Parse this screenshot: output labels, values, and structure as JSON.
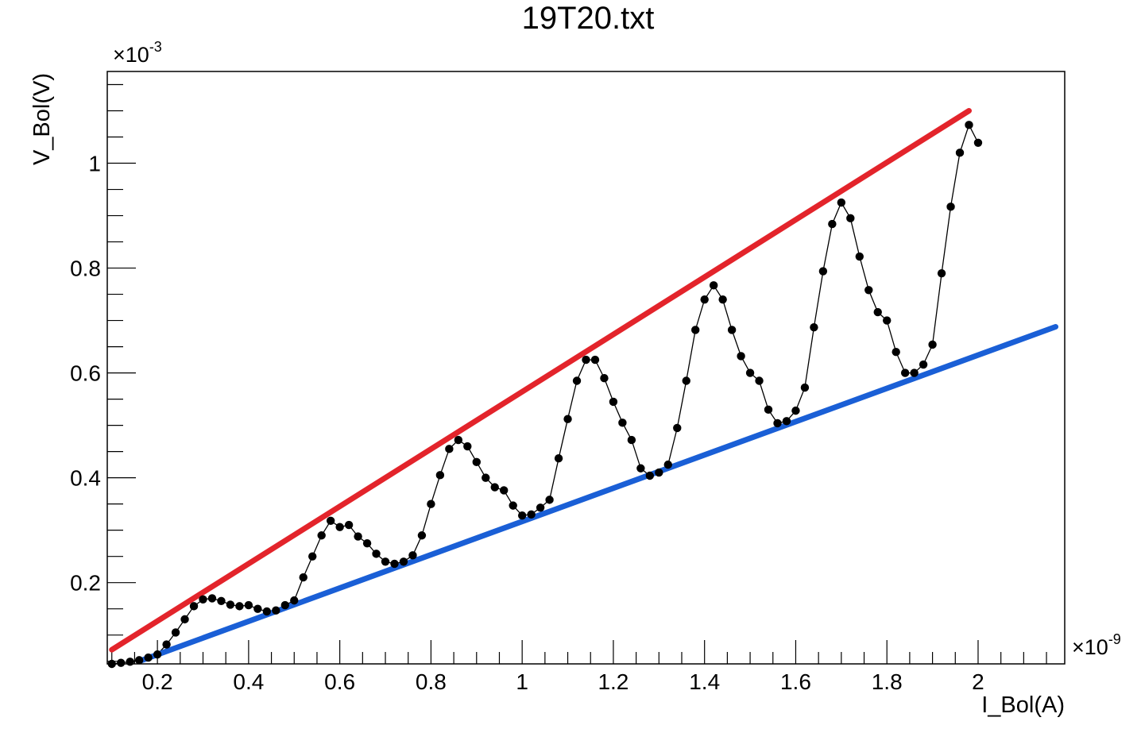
{
  "chart_data": {
    "type": "line",
    "title": "19T20.txt",
    "xlabel": "I_Bol(A)",
    "ylabel": "V_Bol(V)",
    "x_exponent_base": "×10",
    "x_exponent_power": "-9",
    "y_exponent_base": "×10",
    "y_exponent_power": "-3",
    "xlim": [
      0.09,
      2.19
    ],
    "ylim": [
      0.045,
      1.175
    ],
    "x_ticks": [
      0.2,
      0.4,
      0.6,
      0.8,
      1,
      1.2,
      1.4,
      1.6,
      1.8,
      2
    ],
    "x_tick_labels": [
      "0.2",
      "0.4",
      "0.6",
      "0.8",
      "1",
      "1.2",
      "1.4",
      "1.6",
      "1.8",
      "2"
    ],
    "y_ticks": [
      0.2,
      0.4,
      0.6,
      0.8,
      1
    ],
    "y_tick_labels": [
      "0.2",
      "0.4",
      "0.6",
      "0.8",
      "1"
    ],
    "grid": false,
    "legend": "none",
    "series": [
      {
        "style": "black line with filled circle markers",
        "color": "#000000",
        "x": [
          0.1,
          0.12,
          0.14,
          0.16,
          0.18,
          0.2,
          0.22,
          0.24,
          0.26,
          0.28,
          0.3,
          0.32,
          0.34,
          0.36,
          0.38,
          0.4,
          0.42,
          0.44,
          0.46,
          0.48,
          0.5,
          0.52,
          0.54,
          0.56,
          0.58,
          0.6,
          0.62,
          0.64,
          0.66,
          0.68,
          0.7,
          0.72,
          0.74,
          0.76,
          0.78,
          0.8,
          0.82,
          0.84,
          0.86,
          0.88,
          0.9,
          0.92,
          0.94,
          0.96,
          0.98,
          1.0,
          1.02,
          1.04,
          1.06,
          1.08,
          1.1,
          1.12,
          1.14,
          1.16,
          1.18,
          1.2,
          1.22,
          1.24,
          1.26,
          1.28,
          1.3,
          1.32,
          1.34,
          1.36,
          1.38,
          1.4,
          1.42,
          1.44,
          1.46,
          1.48,
          1.5,
          1.52,
          1.54,
          1.56,
          1.58,
          1.6,
          1.62,
          1.64,
          1.66,
          1.68,
          1.7,
          1.72,
          1.74,
          1.76,
          1.78,
          1.8,
          1.82,
          1.84,
          1.86,
          1.88,
          1.9,
          1.92,
          1.94,
          1.96,
          1.98,
          2.0
        ],
        "y": [
          0.045,
          0.047,
          0.049,
          0.052,
          0.057,
          0.063,
          0.082,
          0.105,
          0.13,
          0.155,
          0.168,
          0.17,
          0.165,
          0.158,
          0.155,
          0.157,
          0.15,
          0.145,
          0.147,
          0.157,
          0.166,
          0.21,
          0.25,
          0.29,
          0.318,
          0.306,
          0.31,
          0.288,
          0.275,
          0.255,
          0.24,
          0.236,
          0.24,
          0.252,
          0.29,
          0.35,
          0.405,
          0.455,
          0.472,
          0.46,
          0.43,
          0.4,
          0.382,
          0.376,
          0.347,
          0.328,
          0.33,
          0.343,
          0.358,
          0.437,
          0.512,
          0.585,
          0.625,
          0.625,
          0.59,
          0.545,
          0.505,
          0.472,
          0.418,
          0.404,
          0.41,
          0.425,
          0.495,
          0.585,
          0.682,
          0.74,
          0.767,
          0.74,
          0.682,
          0.632,
          0.6,
          0.585,
          0.53,
          0.504,
          0.508,
          0.528,
          0.572,
          0.687,
          0.794,
          0.884,
          0.925,
          0.895,
          0.822,
          0.758,
          0.716,
          0.7,
          0.64,
          0.6,
          0.6,
          0.616,
          0.654,
          0.79,
          0.917,
          1.02,
          1.073,
          1.039
        ]
      },
      {
        "style": "thick straight line",
        "color": "#e3242b",
        "x": [
          0.1,
          1.98
        ],
        "y": [
          0.072,
          1.1
        ]
      },
      {
        "style": "thick straight line",
        "color": "#1a5fd6",
        "x": [
          0.16,
          2.17
        ],
        "y": [
          0.05,
          0.688
        ]
      }
    ]
  }
}
